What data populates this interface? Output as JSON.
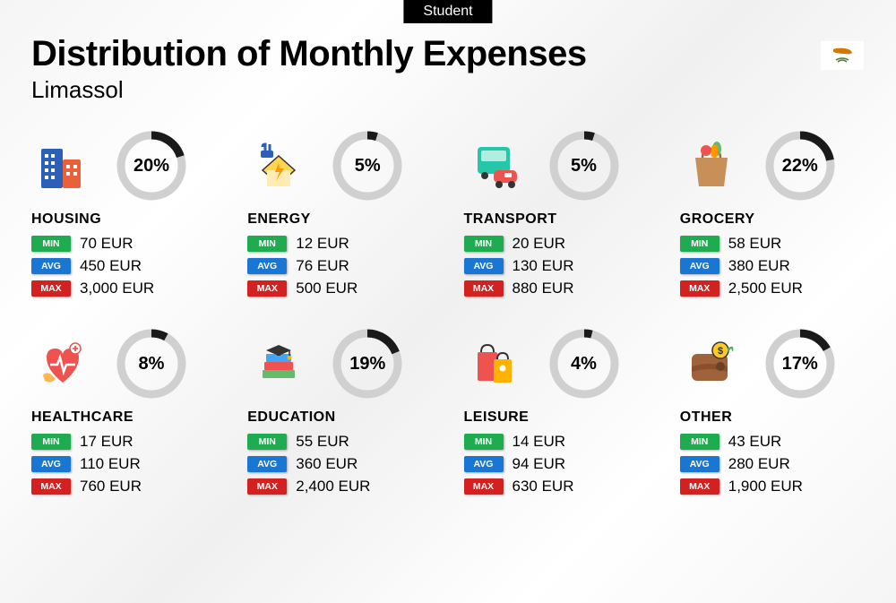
{
  "tag": "Student",
  "title": "Distribution of Monthly Expenses",
  "subtitle": "Limassol",
  "currency": "EUR",
  "colors": {
    "min": "#1fab4f",
    "avg": "#1976d2",
    "max": "#d32020",
    "ring_track": "#d0d0d0",
    "ring_progress": "#1a1a1a"
  },
  "labels": {
    "min": "MIN",
    "avg": "AVG",
    "max": "MAX"
  },
  "ring": {
    "size": 78,
    "radius": 34,
    "stroke": 9
  },
  "categories": [
    {
      "key": "housing",
      "name": "HOUSING",
      "pct": 20,
      "min": "70",
      "avg": "450",
      "max": "3,000",
      "icon": "housing-icon"
    },
    {
      "key": "energy",
      "name": "ENERGY",
      "pct": 5,
      "min": "12",
      "avg": "76",
      "max": "500",
      "icon": "energy-icon"
    },
    {
      "key": "transport",
      "name": "TRANSPORT",
      "pct": 5,
      "min": "20",
      "avg": "130",
      "max": "880",
      "icon": "transport-icon"
    },
    {
      "key": "grocery",
      "name": "GROCERY",
      "pct": 22,
      "min": "58",
      "avg": "380",
      "max": "2,500",
      "icon": "grocery-icon"
    },
    {
      "key": "healthcare",
      "name": "HEALTHCARE",
      "pct": 8,
      "min": "17",
      "avg": "110",
      "max": "760",
      "icon": "healthcare-icon"
    },
    {
      "key": "education",
      "name": "EDUCATION",
      "pct": 19,
      "min": "55",
      "avg": "360",
      "max": "2,400",
      "icon": "education-icon"
    },
    {
      "key": "leisure",
      "name": "LEISURE",
      "pct": 4,
      "min": "14",
      "avg": "94",
      "max": "630",
      "icon": "leisure-icon"
    },
    {
      "key": "other",
      "name": "OTHER",
      "pct": 17,
      "min": "43",
      "avg": "280",
      "max": "1,900",
      "icon": "other-icon"
    }
  ]
}
